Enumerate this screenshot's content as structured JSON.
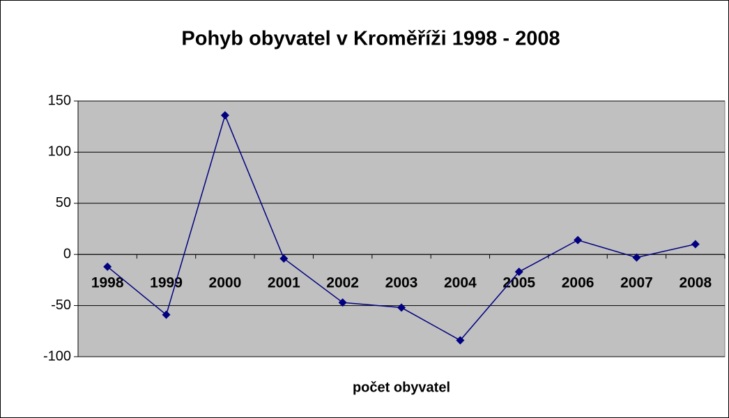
{
  "chart_data": {
    "type": "line",
    "title": "Pohyb obyvatel v Kroměříži 1998 - 2008",
    "x_label": "počet obyvatel",
    "categories": [
      "1998",
      "1999",
      "2000",
      "2001",
      "2002",
      "2003",
      "2004",
      "2005",
      "2006",
      "2007",
      "2008"
    ],
    "series": [
      {
        "color": "#000080",
        "values": [
          -12,
          -59,
          136,
          -4,
          -47,
          -52,
          -84,
          -17,
          14,
          -3,
          10
        ]
      }
    ],
    "ylim": [
      -100,
      150
    ],
    "yticks": [
      -100,
      -50,
      0,
      50,
      100,
      150
    ],
    "grid": true
  }
}
